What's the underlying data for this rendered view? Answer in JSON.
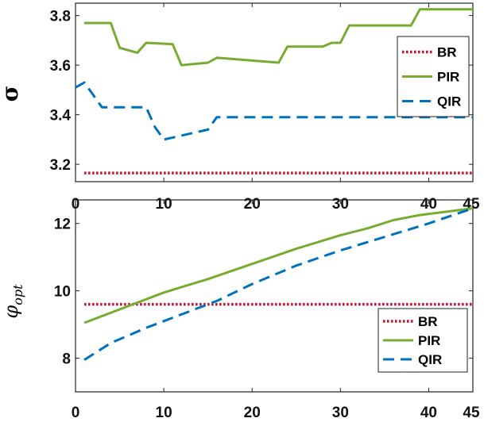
{
  "colors": {
    "BR": "#c8102e",
    "PIR": "#77ac30",
    "QIR": "#0072bd"
  },
  "chart_data": [
    {
      "type": "line",
      "ylabel": "σ",
      "xlabel": "",
      "xlim": [
        0,
        45
      ],
      "ylim": [
        3.13,
        3.85
      ],
      "xticks": [
        0,
        10,
        20,
        30,
        40,
        45
      ],
      "yticks": [
        3.2,
        3.4,
        3.6,
        3.8
      ],
      "ytick_labels": [
        "3.2",
        "3.4",
        "3.6",
        "3.8"
      ],
      "grid": false,
      "legend_position": "right",
      "series": [
        {
          "name": "BR",
          "style": "dotted",
          "x": [
            1,
            45
          ],
          "y": [
            3.165,
            3.165
          ]
        },
        {
          "name": "PIR",
          "style": "solid",
          "x": [
            1,
            4,
            5,
            7,
            8,
            11,
            12,
            15,
            16,
            23,
            24,
            28,
            29,
            30,
            31,
            37,
            38,
            39,
            45
          ],
          "y": [
            3.77,
            3.77,
            3.67,
            3.65,
            3.69,
            3.685,
            3.6,
            3.61,
            3.63,
            3.61,
            3.675,
            3.675,
            3.69,
            3.69,
            3.76,
            3.76,
            3.76,
            3.825,
            3.825
          ]
        },
        {
          "name": "QIR",
          "style": "dashed",
          "x": [
            0,
            1,
            2,
            3,
            8,
            9,
            10,
            15,
            16,
            45
          ],
          "y": [
            3.51,
            3.53,
            3.48,
            3.43,
            3.43,
            3.35,
            3.3,
            3.34,
            3.39,
            3.39
          ]
        }
      ]
    },
    {
      "type": "line",
      "ylabel": "φ",
      "ylabel_sub": "opt",
      "xlabel": "",
      "xlim": [
        0,
        45
      ],
      "ylim": [
        7.0,
        12.7
      ],
      "xticks": [
        0,
        10,
        20,
        30,
        40,
        45
      ],
      "yticks": [
        8,
        10,
        12
      ],
      "ytick_labels": [
        "8",
        "10",
        "12"
      ],
      "grid": false,
      "legend_position": "bottom-right",
      "series": [
        {
          "name": "BR",
          "style": "dotted",
          "x": [
            1,
            45
          ],
          "y": [
            9.6,
            9.6
          ]
        },
        {
          "name": "PIR",
          "style": "solid",
          "x": [
            1,
            5,
            10,
            15,
            20,
            25,
            30,
            33,
            36,
            39,
            42,
            45
          ],
          "y": [
            9.05,
            9.45,
            9.95,
            10.35,
            10.8,
            11.25,
            11.65,
            11.85,
            12.1,
            12.25,
            12.35,
            12.45
          ]
        },
        {
          "name": "QIR",
          "style": "dashed",
          "x": [
            1,
            4,
            8,
            12,
            16,
            20,
            25,
            30,
            35,
            40,
            45
          ],
          "y": [
            7.95,
            8.45,
            8.9,
            9.3,
            9.7,
            10.2,
            10.75,
            11.2,
            11.6,
            12.0,
            12.45
          ]
        }
      ]
    }
  ]
}
